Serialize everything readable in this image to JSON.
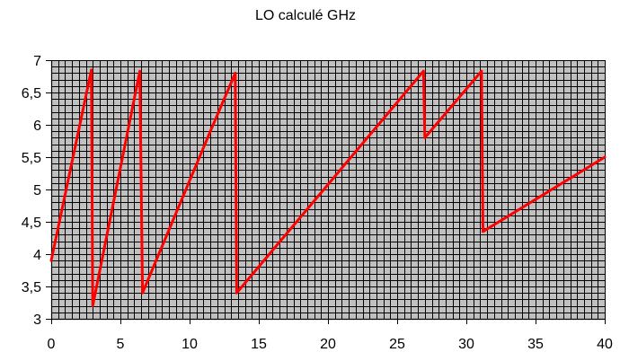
{
  "chart_data": {
    "type": "line",
    "title": "LO calculé GHz",
    "xlabel": "",
    "ylabel": "",
    "xlim": [
      0,
      40
    ],
    "ylim": [
      3,
      7
    ],
    "x_ticks": [
      "0",
      "5",
      "10",
      "15",
      "20",
      "25",
      "30",
      "35",
      "40"
    ],
    "y_ticks": [
      "3",
      "3,5",
      "4",
      "4,5",
      "5",
      "5,5",
      "6",
      "6,5",
      "7"
    ],
    "grid": true,
    "legend": "none",
    "colors": {
      "plot_background": "#c0c0c0",
      "grid": "#000000",
      "series": "#ff0000"
    },
    "series": [
      {
        "points": [
          [
            0,
            3.9
          ],
          [
            2.9,
            6.85
          ],
          [
            3.0,
            3.2
          ],
          [
            6.4,
            6.83
          ],
          [
            6.6,
            3.4
          ],
          [
            11.5,
            5.9
          ],
          [
            13.3,
            6.8
          ],
          [
            13.4,
            3.4
          ],
          [
            26.9,
            6.83
          ],
          [
            27.0,
            5.8
          ],
          [
            31.1,
            6.83
          ],
          [
            31.2,
            4.35
          ],
          [
            40.0,
            5.5
          ]
        ]
      }
    ]
  }
}
